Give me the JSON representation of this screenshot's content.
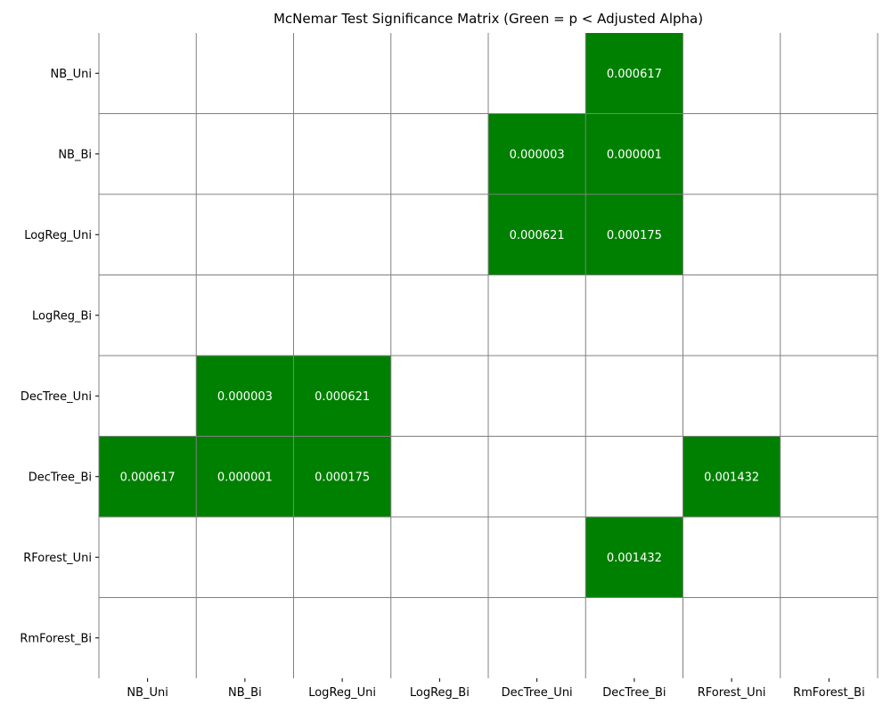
{
  "chart_data": {
    "type": "heatmap",
    "title": "McNemar Test Significance Matrix (Green = p < Adjusted Alpha)",
    "xlabel": "",
    "ylabel": "",
    "row_labels": [
      "NB_Uni",
      "NB_Bi",
      "LogReg_Uni",
      "LogReg_Bi",
      "DecTree_Uni",
      "DecTree_Bi",
      "RForest_Uni",
      "RmForest_Bi"
    ],
    "col_labels": [
      "NB_Uni",
      "NB_Bi",
      "LogReg_Uni",
      "LogReg_Bi",
      "DecTree_Uni",
      "DecTree_Bi",
      "RForest_Uni",
      "RmForest_Bi"
    ],
    "values": [
      [
        null,
        null,
        null,
        null,
        null,
        "0.000617",
        null,
        null
      ],
      [
        null,
        null,
        null,
        null,
        "0.000003",
        "0.000001",
        null,
        null
      ],
      [
        null,
        null,
        null,
        null,
        "0.000621",
        "0.000175",
        null,
        null
      ],
      [
        null,
        null,
        null,
        null,
        null,
        null,
        null,
        null
      ],
      [
        null,
        "0.000003",
        "0.000621",
        null,
        null,
        null,
        null,
        null
      ],
      [
        "0.000617",
        "0.000001",
        "0.000175",
        null,
        null,
        null,
        "0.001432",
        null
      ],
      [
        null,
        null,
        null,
        null,
        null,
        "0.001432",
        null,
        null
      ],
      [
        null,
        null,
        null,
        null,
        null,
        null,
        null,
        null
      ]
    ],
    "colors": {
      "significant": "#008000",
      "not_significant": "#ffffff",
      "grid": "#808080",
      "cell_text": "#ffffff"
    },
    "grid": true,
    "legend": "none"
  }
}
